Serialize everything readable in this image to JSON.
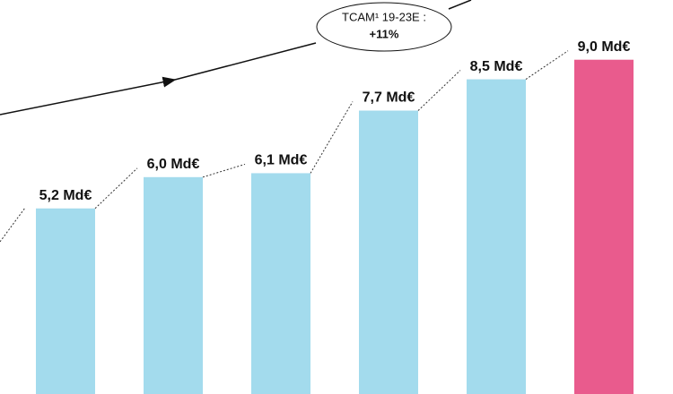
{
  "chart_data": {
    "type": "bar",
    "values": [
      5.2,
      6.0,
      6.1,
      7.7,
      8.5,
      9.0
    ],
    "value_labels": [
      "5,2 Md€",
      "6,0 Md€",
      "6,1 Md€",
      "7,7 Md€",
      "8,5 Md€",
      "9,0 Md€"
    ],
    "colors": [
      "#a3dbed",
      "#a3dbed",
      "#a3dbed",
      "#a3dbed",
      "#a3dbed",
      "#e95b8d"
    ],
    "annotation": {
      "line1": "TCAM¹ 19-23E :",
      "line2": "+11%"
    }
  }
}
